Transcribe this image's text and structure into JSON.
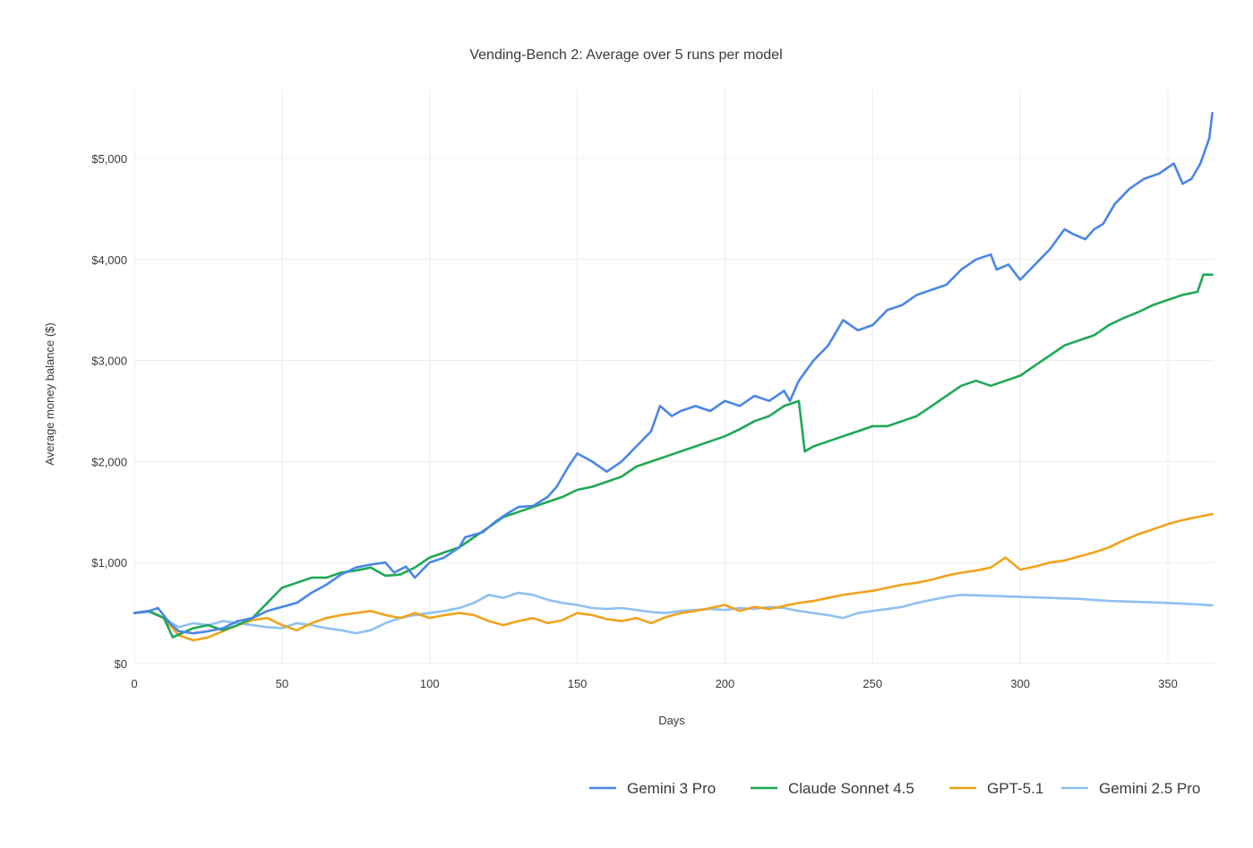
{
  "chart_data": {
    "type": "line",
    "title": "Vending-Bench 2: Average over 5 runs per model",
    "xlabel": "Days",
    "ylabel": "Average money balance ($)",
    "xlim": [
      0,
      365
    ],
    "ylim": [
      0,
      5600
    ],
    "x_ticks": [
      0,
      50,
      100,
      150,
      200,
      250,
      300,
      350
    ],
    "x_tick_labels": [
      "0",
      "50",
      "100",
      "150",
      "200",
      "250",
      "300",
      "350"
    ],
    "y_ticks": [
      0,
      1000,
      2000,
      3000,
      4000,
      5000
    ],
    "y_tick_labels": [
      "$0",
      "$1,000",
      "$2,000",
      "$3,000",
      "$4,000",
      "$5,000"
    ],
    "grid": true,
    "legend_position": "bottom-right",
    "series": [
      {
        "name": "Gemini 3 Pro",
        "color": "#4a86e8",
        "points": [
          [
            0,
            500
          ],
          [
            5,
            520
          ],
          [
            8,
            550
          ],
          [
            12,
            400
          ],
          [
            15,
            320
          ],
          [
            20,
            300
          ],
          [
            25,
            320
          ],
          [
            30,
            350
          ],
          [
            35,
            420
          ],
          [
            40,
            450
          ],
          [
            45,
            520
          ],
          [
            50,
            560
          ],
          [
            55,
            600
          ],
          [
            60,
            700
          ],
          [
            65,
            780
          ],
          [
            70,
            880
          ],
          [
            75,
            950
          ],
          [
            80,
            980
          ],
          [
            85,
            1000
          ],
          [
            88,
            900
          ],
          [
            92,
            960
          ],
          [
            95,
            850
          ],
          [
            100,
            1000
          ],
          [
            105,
            1050
          ],
          [
            110,
            1150
          ],
          [
            112,
            1250
          ],
          [
            118,
            1300
          ],
          [
            122,
            1400
          ],
          [
            126,
            1480
          ],
          [
            130,
            1550
          ],
          [
            135,
            1560
          ],
          [
            140,
            1650
          ],
          [
            143,
            1750
          ],
          [
            147,
            1950
          ],
          [
            150,
            2080
          ],
          [
            155,
            2000
          ],
          [
            160,
            1900
          ],
          [
            165,
            2000
          ],
          [
            170,
            2150
          ],
          [
            175,
            2300
          ],
          [
            178,
            2550
          ],
          [
            182,
            2450
          ],
          [
            185,
            2500
          ],
          [
            190,
            2550
          ],
          [
            195,
            2500
          ],
          [
            200,
            2600
          ],
          [
            205,
            2550
          ],
          [
            210,
            2650
          ],
          [
            215,
            2600
          ],
          [
            220,
            2700
          ],
          [
            222,
            2600
          ],
          [
            225,
            2800
          ],
          [
            230,
            3000
          ],
          [
            235,
            3150
          ],
          [
            240,
            3400
          ],
          [
            245,
            3300
          ],
          [
            250,
            3350
          ],
          [
            255,
            3500
          ],
          [
            260,
            3550
          ],
          [
            265,
            3650
          ],
          [
            270,
            3700
          ],
          [
            275,
            3750
          ],
          [
            280,
            3900
          ],
          [
            285,
            4000
          ],
          [
            290,
            4050
          ],
          [
            292,
            3900
          ],
          [
            296,
            3950
          ],
          [
            300,
            3800
          ],
          [
            305,
            3950
          ],
          [
            310,
            4100
          ],
          [
            315,
            4300
          ],
          [
            318,
            4250
          ],
          [
            322,
            4200
          ],
          [
            325,
            4300
          ],
          [
            328,
            4350
          ],
          [
            332,
            4550
          ],
          [
            337,
            4700
          ],
          [
            342,
            4800
          ],
          [
            347,
            4850
          ],
          [
            352,
            4950
          ],
          [
            355,
            4750
          ],
          [
            358,
            4800
          ],
          [
            361,
            4950
          ],
          [
            364,
            5200
          ],
          [
            365,
            5450
          ]
        ]
      },
      {
        "name": "Claude Sonnet 4.5",
        "color": "#1fa855",
        "points": [
          [
            0,
            500
          ],
          [
            5,
            520
          ],
          [
            10,
            450
          ],
          [
            13,
            260
          ],
          [
            16,
            300
          ],
          [
            20,
            350
          ],
          [
            25,
            380
          ],
          [
            30,
            330
          ],
          [
            35,
            380
          ],
          [
            40,
            450
          ],
          [
            45,
            600
          ],
          [
            50,
            750
          ],
          [
            55,
            800
          ],
          [
            60,
            850
          ],
          [
            65,
            850
          ],
          [
            70,
            900
          ],
          [
            75,
            920
          ],
          [
            80,
            950
          ],
          [
            85,
            870
          ],
          [
            90,
            880
          ],
          [
            95,
            950
          ],
          [
            100,
            1050
          ],
          [
            105,
            1100
          ],
          [
            110,
            1150
          ],
          [
            115,
            1250
          ],
          [
            120,
            1350
          ],
          [
            125,
            1450
          ],
          [
            130,
            1500
          ],
          [
            135,
            1550
          ],
          [
            140,
            1600
          ],
          [
            145,
            1650
          ],
          [
            150,
            1720
          ],
          [
            155,
            1750
          ],
          [
            160,
            1800
          ],
          [
            165,
            1850
          ],
          [
            170,
            1950
          ],
          [
            175,
            2000
          ],
          [
            180,
            2050
          ],
          [
            185,
            2100
          ],
          [
            190,
            2150
          ],
          [
            195,
            2200
          ],
          [
            200,
            2250
          ],
          [
            205,
            2320
          ],
          [
            210,
            2400
          ],
          [
            215,
            2450
          ],
          [
            220,
            2550
          ],
          [
            225,
            2600
          ],
          [
            227,
            2100
          ],
          [
            230,
            2150
          ],
          [
            235,
            2200
          ],
          [
            240,
            2250
          ],
          [
            245,
            2300
          ],
          [
            250,
            2350
          ],
          [
            255,
            2350
          ],
          [
            260,
            2400
          ],
          [
            265,
            2450
          ],
          [
            270,
            2550
          ],
          [
            275,
            2650
          ],
          [
            280,
            2750
          ],
          [
            285,
            2800
          ],
          [
            290,
            2750
          ],
          [
            295,
            2800
          ],
          [
            300,
            2850
          ],
          [
            305,
            2950
          ],
          [
            310,
            3050
          ],
          [
            315,
            3150
          ],
          [
            320,
            3200
          ],
          [
            325,
            3250
          ],
          [
            330,
            3350
          ],
          [
            335,
            3420
          ],
          [
            340,
            3480
          ],
          [
            345,
            3550
          ],
          [
            350,
            3600
          ],
          [
            355,
            3650
          ],
          [
            360,
            3680
          ],
          [
            362,
            3850
          ],
          [
            365,
            3850
          ]
        ]
      },
      {
        "name": "GPT-5.1",
        "color": "#f0a31c",
        "points": [
          [
            0,
            500
          ],
          [
            5,
            520
          ],
          [
            10,
            450
          ],
          [
            15,
            280
          ],
          [
            20,
            230
          ],
          [
            25,
            260
          ],
          [
            30,
            320
          ],
          [
            35,
            380
          ],
          [
            40,
            430
          ],
          [
            45,
            450
          ],
          [
            50,
            380
          ],
          [
            55,
            330
          ],
          [
            60,
            400
          ],
          [
            65,
            450
          ],
          [
            70,
            480
          ],
          [
            75,
            500
          ],
          [
            80,
            520
          ],
          [
            85,
            480
          ],
          [
            90,
            450
          ],
          [
            95,
            500
          ],
          [
            100,
            450
          ],
          [
            105,
            480
          ],
          [
            110,
            500
          ],
          [
            115,
            480
          ],
          [
            120,
            420
          ],
          [
            125,
            380
          ],
          [
            130,
            420
          ],
          [
            135,
            450
          ],
          [
            140,
            400
          ],
          [
            145,
            430
          ],
          [
            150,
            500
          ],
          [
            155,
            480
          ],
          [
            160,
            440
          ],
          [
            165,
            420
          ],
          [
            170,
            450
          ],
          [
            175,
            400
          ],
          [
            180,
            460
          ],
          [
            185,
            500
          ],
          [
            190,
            520
          ],
          [
            195,
            550
          ],
          [
            200,
            580
          ],
          [
            205,
            520
          ],
          [
            210,
            560
          ],
          [
            215,
            540
          ],
          [
            220,
            570
          ],
          [
            225,
            600
          ],
          [
            230,
            620
          ],
          [
            235,
            650
          ],
          [
            240,
            680
          ],
          [
            245,
            700
          ],
          [
            250,
            720
          ],
          [
            255,
            750
          ],
          [
            260,
            780
          ],
          [
            265,
            800
          ],
          [
            270,
            830
          ],
          [
            275,
            870
          ],
          [
            280,
            900
          ],
          [
            285,
            920
          ],
          [
            290,
            950
          ],
          [
            295,
            1050
          ],
          [
            300,
            930
          ],
          [
            305,
            960
          ],
          [
            310,
            1000
          ],
          [
            315,
            1020
          ],
          [
            320,
            1060
          ],
          [
            325,
            1100
          ],
          [
            330,
            1150
          ],
          [
            335,
            1220
          ],
          [
            340,
            1280
          ],
          [
            345,
            1330
          ],
          [
            350,
            1380
          ],
          [
            355,
            1420
          ],
          [
            360,
            1450
          ],
          [
            365,
            1480
          ]
        ]
      },
      {
        "name": "Gemini 2.5 Pro",
        "color": "#8ec1f2",
        "points": [
          [
            0,
            500
          ],
          [
            5,
            510
          ],
          [
            10,
            450
          ],
          [
            15,
            360
          ],
          [
            20,
            400
          ],
          [
            25,
            380
          ],
          [
            30,
            420
          ],
          [
            35,
            400
          ],
          [
            40,
            380
          ],
          [
            45,
            360
          ],
          [
            50,
            350
          ],
          [
            55,
            400
          ],
          [
            60,
            380
          ],
          [
            65,
            350
          ],
          [
            70,
            330
          ],
          [
            75,
            300
          ],
          [
            80,
            330
          ],
          [
            85,
            400
          ],
          [
            90,
            450
          ],
          [
            95,
            480
          ],
          [
            100,
            500
          ],
          [
            105,
            520
          ],
          [
            110,
            550
          ],
          [
            115,
            600
          ],
          [
            120,
            680
          ],
          [
            125,
            650
          ],
          [
            130,
            700
          ],
          [
            135,
            680
          ],
          [
            140,
            630
          ],
          [
            145,
            600
          ],
          [
            150,
            580
          ],
          [
            155,
            550
          ],
          [
            160,
            540
          ],
          [
            165,
            550
          ],
          [
            170,
            530
          ],
          [
            175,
            510
          ],
          [
            180,
            500
          ],
          [
            185,
            520
          ],
          [
            190,
            530
          ],
          [
            195,
            540
          ],
          [
            200,
            530
          ],
          [
            205,
            550
          ],
          [
            210,
            540
          ],
          [
            215,
            560
          ],
          [
            220,
            550
          ],
          [
            225,
            520
          ],
          [
            230,
            500
          ],
          [
            235,
            480
          ],
          [
            240,
            450
          ],
          [
            245,
            500
          ],
          [
            250,
            520
          ],
          [
            255,
            540
          ],
          [
            260,
            560
          ],
          [
            265,
            600
          ],
          [
            270,
            630
          ],
          [
            275,
            660
          ],
          [
            280,
            680
          ],
          [
            290,
            670
          ],
          [
            300,
            660
          ],
          [
            310,
            650
          ],
          [
            320,
            640
          ],
          [
            330,
            620
          ],
          [
            340,
            610
          ],
          [
            350,
            600
          ],
          [
            360,
            585
          ],
          [
            365,
            575
          ]
        ]
      }
    ]
  }
}
